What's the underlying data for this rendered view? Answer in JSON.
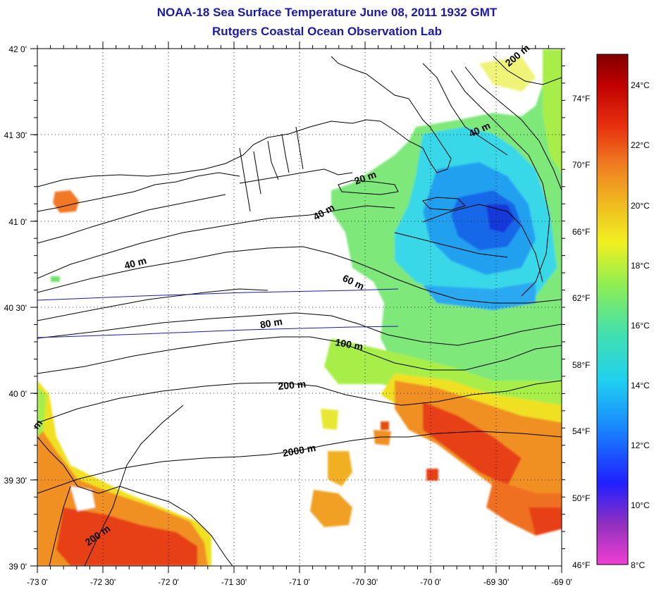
{
  "header": {
    "title": "NOAA-18 Sea Surface Temperature June 08, 2011 1932 GMT",
    "subtitle": "Rutgers Coastal Ocean Observation Lab"
  },
  "map": {
    "lon_ticks": [
      "-73 0'",
      "-72 30'",
      "-72 0'",
      "-71 30'",
      "-71 0'",
      "-70 30'",
      "-70 0'",
      "-69 30'",
      "-69 0'"
    ],
    "lat_ticks": [
      "42 0'",
      "41 30'",
      "41 0'",
      "40 30'",
      "40 0'",
      "39 30'",
      "39 0'"
    ],
    "contour_labels": [
      "200 m",
      "40 m",
      "20 m",
      "40 m",
      "40 m",
      "60 m",
      "80 m",
      "100 m",
      "200 m",
      "2000 m",
      "200 m",
      "m"
    ],
    "grid": "dotted"
  },
  "colorbar": {
    "celsius_labels": [
      "24°C",
      "22°C",
      "20°C",
      "18°C",
      "16°C",
      "14°C",
      "12°C",
      "10°C",
      "8°C"
    ],
    "fahrenheit_labels": [
      "74°F",
      "70°F",
      "66°F",
      "62°F",
      "58°F",
      "54°F",
      "50°F",
      "46°F"
    ],
    "colors": [
      "#f040d0",
      "#9030c0",
      "#2020ff",
      "#1880ff",
      "#20d0f0",
      "#40e0b0",
      "#90ee50",
      "#f0f020",
      "#f0c020",
      "#f08020",
      "#e83010",
      "#c00000",
      "#800000"
    ]
  }
}
